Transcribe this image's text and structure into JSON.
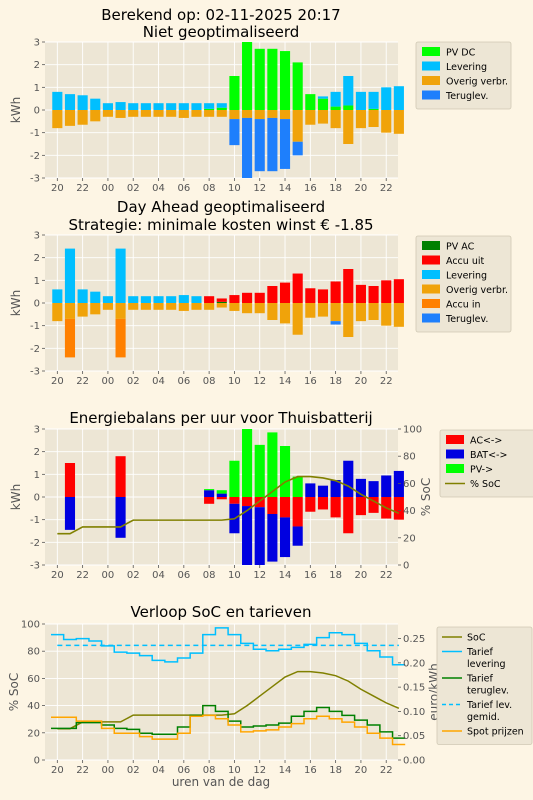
{
  "page_title": "Berekend op: 02-11-2025 20:17",
  "x_tick_labels": [
    "20",
    "22",
    "00",
    "02",
    "04",
    "06",
    "08",
    "10",
    "12",
    "14",
    "16",
    "18",
    "20",
    "22"
  ],
  "xlabel_bottom": "uren van de dag",
  "colors": {
    "pv_dc": "#00ff00",
    "levering": "#00bfff",
    "overig": "#f0a30a",
    "teruglev": "#1e7ffc",
    "pv_ac": "#008000",
    "accu_uit": "#ff0000",
    "accu_in": "#ff8000",
    "ac": "#ff0000",
    "bat": "#0000e0",
    "pv": "#00ff00",
    "soc": "#808000",
    "tarief_lev": "#00bfff",
    "tarief_ter": "#008000",
    "spot": "#ffa500"
  },
  "legends": {
    "chart1": [
      "PV DC",
      "Levering",
      "Overig verbr.",
      "Teruglev."
    ],
    "chart2": [
      "PV AC",
      "Accu uit",
      "Levering",
      "Overig verbr.",
      "Accu in",
      "Teruglev."
    ],
    "chart3": [
      "AC<->",
      "BAT<->",
      "PV->",
      "% SoC"
    ],
    "chart4": [
      "SoC",
      "Tarief levering",
      "Tarief teruglev.",
      "Tarief lev. gemid.",
      "Spot prijzen"
    ]
  },
  "chart_data": [
    {
      "type": "bar",
      "title": "Niet geoptimaliseerd",
      "ylabel": "kWh",
      "ylim": [
        -3,
        3
      ],
      "yticks": [
        -3,
        -2,
        -1,
        0,
        1,
        2,
        3
      ],
      "hours": [
        20,
        21,
        22,
        23,
        0,
        1,
        2,
        3,
        4,
        5,
        6,
        7,
        8,
        9,
        10,
        11,
        12,
        13,
        14,
        15,
        16,
        17,
        18,
        19,
        20,
        21,
        22,
        23
      ],
      "series": [
        {
          "name": "PV DC",
          "values": [
            0,
            0,
            0,
            0,
            0,
            0,
            0,
            0,
            0,
            0,
            0,
            0,
            0.05,
            0.1,
            1.5,
            3.0,
            2.7,
            2.7,
            2.6,
            2.1,
            0.7,
            0.5,
            0.15,
            0.2,
            0,
            0.05,
            0,
            0
          ]
        },
        {
          "name": "Levering",
          "values": [
            0.8,
            0.7,
            0.65,
            0.5,
            0.3,
            0.35,
            0.3,
            0.3,
            0.3,
            0.3,
            0.3,
            0.3,
            0.25,
            0.2,
            0,
            0,
            0,
            0,
            0,
            0,
            0,
            0.1,
            0.65,
            1.3,
            0.8,
            0.75,
            1.0,
            1.05
          ]
        },
        {
          "name": "Overig verbr.",
          "values": [
            -0.8,
            -0.7,
            -0.65,
            -0.5,
            -0.3,
            -0.35,
            -0.3,
            -0.3,
            -0.3,
            -0.3,
            -0.35,
            -0.3,
            -0.3,
            -0.3,
            -0.4,
            -0.35,
            -0.4,
            -0.35,
            -0.4,
            -1.4,
            -0.65,
            -0.6,
            -0.8,
            -1.5,
            -0.8,
            -0.75,
            -1.0,
            -1.05
          ]
        },
        {
          "name": "Teruglev.",
          "values": [
            0,
            0,
            0,
            0,
            0,
            0,
            0,
            0,
            0,
            0,
            0,
            0,
            0,
            0,
            -1.15,
            -2.65,
            -2.3,
            -2.35,
            -2.2,
            -0.6,
            0,
            0,
            0,
            0,
            0,
            0,
            0,
            0
          ]
        }
      ]
    },
    {
      "type": "bar",
      "title": "Day Ahead geoptimaliseerd",
      "subtitle": "Strategie: minimale kosten winst € -1.85",
      "ylabel": "kWh",
      "ylim": [
        -3,
        3
      ],
      "yticks": [
        -3,
        -2,
        -1,
        0,
        1,
        2,
        3
      ],
      "hours": [
        20,
        21,
        22,
        23,
        0,
        1,
        2,
        3,
        4,
        5,
        6,
        7,
        8,
        9,
        10,
        11,
        12,
        13,
        14,
        15,
        16,
        17,
        18,
        19,
        20,
        21,
        22,
        23
      ],
      "series": [
        {
          "name": "PV AC",
          "values": [
            0,
            0,
            0,
            0,
            0,
            0,
            0,
            0,
            0,
            0,
            0,
            0,
            0,
            0.05,
            0,
            0,
            0,
            0,
            0,
            0,
            0,
            0,
            0,
            0,
            0,
            0,
            0,
            0
          ]
        },
        {
          "name": "Accu uit",
          "values": [
            0,
            0,
            0,
            0,
            0,
            0,
            0,
            0,
            0,
            0,
            0,
            0,
            0.3,
            0.15,
            0.35,
            0.45,
            0.45,
            0.75,
            0.9,
            1.3,
            0.65,
            0.6,
            0.95,
            1.5,
            0.8,
            0.75,
            1.0,
            1.05
          ]
        },
        {
          "name": "Levering",
          "values": [
            0.6,
            2.4,
            0.6,
            0.5,
            0.3,
            2.4,
            0.3,
            0.3,
            0.3,
            0.3,
            0.35,
            0.3,
            0,
            0,
            0,
            0,
            0,
            0,
            0,
            0,
            0,
            0,
            0,
            0,
            0,
            0,
            0,
            0
          ]
        },
        {
          "name": "Overig verbr.",
          "values": [
            -0.8,
            -0.7,
            -0.6,
            -0.5,
            -0.3,
            -0.7,
            -0.3,
            -0.3,
            -0.3,
            -0.3,
            -0.35,
            -0.3,
            -0.3,
            -0.2,
            -0.35,
            -0.45,
            -0.45,
            -0.75,
            -0.9,
            -1.4,
            -0.65,
            -0.6,
            -0.8,
            -1.5,
            -0.8,
            -0.75,
            -1.0,
            -1.05
          ]
        },
        {
          "name": "Accu in",
          "values": [
            0,
            -1.7,
            0,
            0,
            0,
            -1.7,
            0,
            0,
            0,
            0,
            0,
            0,
            0,
            0,
            0,
            0,
            0,
            0,
            0,
            0,
            0,
            0,
            0,
            0,
            0,
            0,
            0,
            0
          ]
        },
        {
          "name": "Teruglev.",
          "values": [
            0,
            0,
            0,
            0,
            0,
            0,
            0,
            0,
            0,
            0,
            0,
            0,
            0,
            0,
            0,
            0,
            0,
            0,
            0,
            0,
            0,
            0,
            -0.15,
            0,
            0,
            0,
            0,
            0
          ]
        }
      ]
    },
    {
      "type": "bar",
      "title": "Energiebalans per uur voor Thuisbatterij",
      "ylabel": "kWh",
      "ylabel_right": "% SoC",
      "ylim": [
        -3,
        3
      ],
      "yticks": [
        -3,
        -2,
        -1,
        0,
        1,
        2,
        3
      ],
      "ylim_right": [
        0,
        100
      ],
      "yticks_right": [
        0,
        20,
        40,
        60,
        80,
        100
      ],
      "hours": [
        20,
        21,
        22,
        23,
        0,
        1,
        2,
        3,
        4,
        5,
        6,
        7,
        8,
        9,
        10,
        11,
        12,
        13,
        14,
        15,
        16,
        17,
        18,
        19,
        20,
        21,
        22,
        23
      ],
      "series": [
        {
          "name": "AC<->",
          "values": [
            0,
            1.5,
            0,
            0,
            0,
            1.8,
            0,
            0,
            0,
            0,
            0,
            0,
            -0.3,
            -0.1,
            -0.3,
            -0.4,
            -0.45,
            -0.75,
            -0.9,
            -1.3,
            -0.65,
            -0.55,
            -0.9,
            -1.6,
            -0.8,
            -0.7,
            -0.95,
            -1.0
          ]
        },
        {
          "name": "BAT<->",
          "values": [
            0,
            -1.45,
            0,
            0,
            0,
            -1.8,
            0,
            0,
            0,
            0,
            0,
            0,
            0.3,
            0.15,
            -1.3,
            -2.9,
            -2.8,
            -2.1,
            -1.75,
            -0.85,
            0.6,
            0.5,
            0.75,
            1.6,
            0.8,
            0.7,
            0.95,
            1.15
          ]
        },
        {
          "name": "PV->",
          "values": [
            0,
            0,
            0,
            0,
            0,
            0,
            0,
            0,
            0,
            0,
            0,
            0,
            0.05,
            0.15,
            1.6,
            3.0,
            2.3,
            2.85,
            2.25,
            0.9,
            0,
            0,
            0,
            0,
            0,
            0,
            0,
            0
          ]
        },
        {
          "name": "% SoC",
          "values": [
            23,
            23,
            28,
            28,
            28,
            28,
            33,
            33,
            33,
            33,
            33,
            33,
            33,
            33,
            34,
            40,
            47,
            54,
            61,
            65,
            65,
            64,
            62,
            58,
            52,
            47,
            42,
            38
          ]
        }
      ]
    },
    {
      "type": "line",
      "title": "Verloop SoC en tarieven",
      "xlabel": "uren van de dag",
      "ylabel": "% SoC",
      "ylabel_right": "euro/kWh",
      "ylim": [
        0,
        100
      ],
      "yticks": [
        0,
        20,
        40,
        60,
        80,
        100
      ],
      "ylim_right": [
        0,
        0.28
      ],
      "yticks_right": [
        0.0,
        0.05,
        0.1,
        0.15,
        0.2,
        0.25
      ],
      "hours": [
        20,
        21,
        22,
        23,
        0,
        1,
        2,
        3,
        4,
        5,
        6,
        7,
        8,
        9,
        10,
        11,
        12,
        13,
        14,
        15,
        16,
        17,
        18,
        19,
        20,
        21,
        22,
        23
      ],
      "series": [
        {
          "name": "SoC",
          "axis": "left",
          "values": [
            23,
            23,
            28,
            28,
            28,
            28,
            33,
            33,
            33,
            33,
            33,
            33,
            33,
            33,
            34,
            40,
            47,
            54,
            61,
            65,
            65,
            64,
            62,
            58,
            52,
            47,
            42,
            38
          ]
        },
        {
          "name": "Tarief levering",
          "axis": "right",
          "step": true,
          "values": [
            0.258,
            0.248,
            0.25,
            0.245,
            0.235,
            0.222,
            0.22,
            0.215,
            0.205,
            0.202,
            0.21,
            0.22,
            0.258,
            0.272,
            0.258,
            0.24,
            0.228,
            0.225,
            0.228,
            0.232,
            0.238,
            0.252,
            0.262,
            0.258,
            0.24,
            0.225,
            0.212,
            0.196
          ]
        },
        {
          "name": "Tarief teruglev.",
          "axis": "right",
          "step": true,
          "values": [
            0.065,
            0.065,
            0.077,
            0.077,
            0.072,
            0.065,
            0.063,
            0.055,
            0.053,
            0.053,
            0.068,
            0.092,
            0.112,
            0.1,
            0.08,
            0.068,
            0.07,
            0.072,
            0.076,
            0.09,
            0.1,
            0.108,
            0.1,
            0.092,
            0.082,
            0.072,
            0.058,
            0.045
          ]
        },
        {
          "name": "Tarief lev. gemid.",
          "axis": "right",
          "dashed": true,
          "values": [
            0.236,
            0.236,
            0.236,
            0.236,
            0.236,
            0.236,
            0.236,
            0.236,
            0.236,
            0.236,
            0.236,
            0.236,
            0.236,
            0.236,
            0.236,
            0.236,
            0.236,
            0.236,
            0.236,
            0.236,
            0.236,
            0.236,
            0.236,
            0.236,
            0.236,
            0.236,
            0.236,
            0.236
          ]
        },
        {
          "name": "Spot prijzen",
          "axis": "right",
          "step": true,
          "values": [
            0.088,
            0.088,
            0.08,
            0.08,
            0.065,
            0.055,
            0.055,
            0.048,
            0.043,
            0.043,
            0.055,
            0.09,
            0.092,
            0.085,
            0.072,
            0.058,
            0.06,
            0.062,
            0.068,
            0.075,
            0.085,
            0.09,
            0.085,
            0.078,
            0.068,
            0.055,
            0.045,
            0.032
          ]
        }
      ]
    }
  ]
}
